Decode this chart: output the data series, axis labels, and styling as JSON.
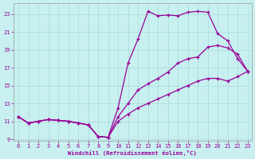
{
  "xlabel": "Windchill (Refroidissement éolien,°C)",
  "bg_color": "#c8f0f0",
  "line_color": "#990099",
  "grid_color": "#a8dada",
  "xlim_min": -0.5,
  "xlim_max": 23.4,
  "ylim_min": 8.8,
  "ylim_max": 24.2,
  "xticks": [
    0,
    1,
    2,
    3,
    4,
    5,
    6,
    7,
    8,
    9,
    10,
    11,
    12,
    13,
    14,
    15,
    16,
    17,
    18,
    19,
    20,
    21,
    22,
    23
  ],
  "yticks": [
    9,
    11,
    13,
    15,
    17,
    19,
    21,
    23
  ],
  "line1_x": [
    0,
    1,
    2,
    3,
    4,
    5,
    6,
    7,
    8,
    9,
    10,
    11,
    12,
    13,
    14,
    15,
    16,
    17,
    18,
    19,
    20,
    21,
    22,
    23
  ],
  "line1_y": [
    11.5,
    10.8,
    11.0,
    11.2,
    11.1,
    11.0,
    10.8,
    10.6,
    9.3,
    9.2,
    12.5,
    17.5,
    20.2,
    23.3,
    22.8,
    22.9,
    22.8,
    23.2,
    23.3,
    23.2,
    20.8,
    20.0,
    18.0,
    16.6
  ],
  "line2_x": [
    0,
    1,
    2,
    3,
    4,
    5,
    6,
    7,
    8,
    9,
    10,
    11,
    12,
    13,
    14,
    15,
    16,
    17,
    18,
    19,
    20,
    21,
    22,
    23
  ],
  "line2_y": [
    11.5,
    10.8,
    11.0,
    11.2,
    11.1,
    11.0,
    10.8,
    10.6,
    9.3,
    9.2,
    11.5,
    13.0,
    14.5,
    15.2,
    15.8,
    16.5,
    17.5,
    18.0,
    18.2,
    19.3,
    19.5,
    19.2,
    18.5,
    16.6
  ],
  "line3_x": [
    0,
    1,
    2,
    3,
    4,
    5,
    6,
    7,
    8,
    9,
    10,
    11,
    12,
    13,
    14,
    15,
    16,
    17,
    18,
    19,
    20,
    21,
    22,
    23
  ],
  "line3_y": [
    11.5,
    10.8,
    11.0,
    11.2,
    11.1,
    11.0,
    10.8,
    10.6,
    9.3,
    9.2,
    11.0,
    11.8,
    12.5,
    13.0,
    13.5,
    14.0,
    14.5,
    15.0,
    15.5,
    15.8,
    15.8,
    15.5,
    16.0,
    16.6
  ]
}
